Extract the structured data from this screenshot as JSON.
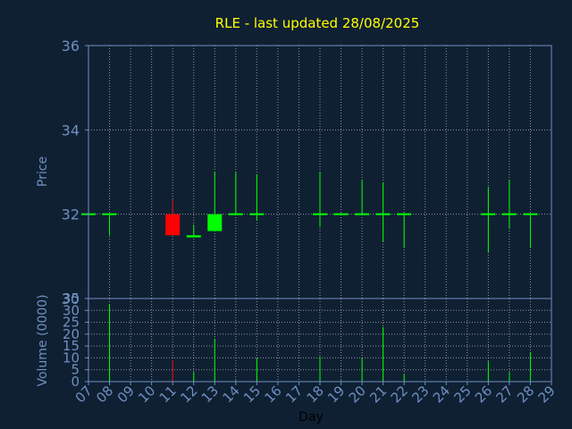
{
  "colors": {
    "background": "#0f2033",
    "title": "#ffff00",
    "axis": "#6f8fbf",
    "tick_text": "#6f8fbf",
    "grid": "#c8c8c8",
    "up": "#00ff00",
    "down": "#ff0000",
    "xlabel": "#000000"
  },
  "chart_data": [
    {
      "type": "candlestick",
      "title": "RLE - last updated 28/08/2025",
      "ylabel": "Price",
      "ylim": [
        30,
        36
      ],
      "y_ticks": [
        "30",
        "32",
        "34",
        "36"
      ],
      "grid": true,
      "x_categories": [
        "07",
        "08",
        "09",
        "10",
        "11",
        "12",
        "13",
        "14",
        "15",
        "16",
        "17",
        "18",
        "19",
        "20",
        "21",
        "22",
        "23",
        "24",
        "25",
        "26",
        "27",
        "28",
        "29"
      ],
      "candles": [
        {
          "day": "07",
          "open": 32.0,
          "high": 32.0,
          "low": 32.0,
          "close": 32.0
        },
        {
          "day": "08",
          "open": 32.0,
          "high": 32.0,
          "low": 31.5,
          "close": 32.0
        },
        {
          "day": "11",
          "open": 32.0,
          "high": 32.35,
          "low": 31.5,
          "close": 31.5
        },
        {
          "day": "12",
          "open": 31.45,
          "high": 31.75,
          "low": 31.45,
          "close": 31.5
        },
        {
          "day": "13",
          "open": 31.6,
          "high": 33.0,
          "low": 31.6,
          "close": 32.0
        },
        {
          "day": "14",
          "open": 32.0,
          "high": 33.0,
          "low": 32.0,
          "close": 32.0
        },
        {
          "day": "15",
          "open": 32.0,
          "high": 32.95,
          "low": 31.85,
          "close": 32.0
        },
        {
          "day": "18",
          "open": 32.0,
          "high": 33.0,
          "low": 31.7,
          "close": 32.0
        },
        {
          "day": "19",
          "open": 32.0,
          "high": 32.0,
          "low": 32.0,
          "close": 32.0
        },
        {
          "day": "20",
          "open": 32.0,
          "high": 32.8,
          "low": 32.0,
          "close": 32.0
        },
        {
          "day": "21",
          "open": 32.0,
          "high": 32.75,
          "low": 31.35,
          "close": 32.0
        },
        {
          "day": "22",
          "open": 32.0,
          "high": 32.0,
          "low": 31.2,
          "close": 32.0
        },
        {
          "day": "26",
          "open": 32.0,
          "high": 32.65,
          "low": 31.1,
          "close": 32.0
        },
        {
          "day": "27",
          "open": 32.0,
          "high": 32.8,
          "low": 31.65,
          "close": 32.0
        },
        {
          "day": "28",
          "open": 32.0,
          "high": 32.0,
          "low": 31.2,
          "close": 32.0
        }
      ]
    },
    {
      "type": "bar",
      "ylabel": "Volume (0000)",
      "xlabel": "Day",
      "ylim": [
        0,
        35
      ],
      "y_ticks": [
        "0",
        "5",
        "10",
        "15",
        "20",
        "25",
        "30",
        "35"
      ],
      "x_ticks": [
        "07",
        "08",
        "09",
        "10",
        "11",
        "12",
        "13",
        "14",
        "15",
        "16",
        "17",
        "18",
        "19",
        "20",
        "21",
        "22",
        "23",
        "24",
        "25",
        "26",
        "27",
        "28",
        "29"
      ],
      "grid": true,
      "bars": [
        {
          "day": "07",
          "value": 0.5,
          "direction": "up"
        },
        {
          "day": "08",
          "value": 32.5,
          "direction": "up"
        },
        {
          "day": "11",
          "value": 9,
          "direction": "down"
        },
        {
          "day": "12",
          "value": 4,
          "direction": "up"
        },
        {
          "day": "13",
          "value": 18,
          "direction": "up"
        },
        {
          "day": "14",
          "value": 0.5,
          "direction": "up"
        },
        {
          "day": "15",
          "value": 10,
          "direction": "up"
        },
        {
          "day": "18",
          "value": 10.5,
          "direction": "up"
        },
        {
          "day": "19",
          "value": 0.5,
          "direction": "up"
        },
        {
          "day": "20",
          "value": 10,
          "direction": "up"
        },
        {
          "day": "21",
          "value": 23,
          "direction": "up"
        },
        {
          "day": "22",
          "value": 3,
          "direction": "up"
        },
        {
          "day": "26",
          "value": 8.5,
          "direction": "up"
        },
        {
          "day": "27",
          "value": 4,
          "direction": "up"
        },
        {
          "day": "28",
          "value": 12.5,
          "direction": "up"
        }
      ]
    }
  ]
}
